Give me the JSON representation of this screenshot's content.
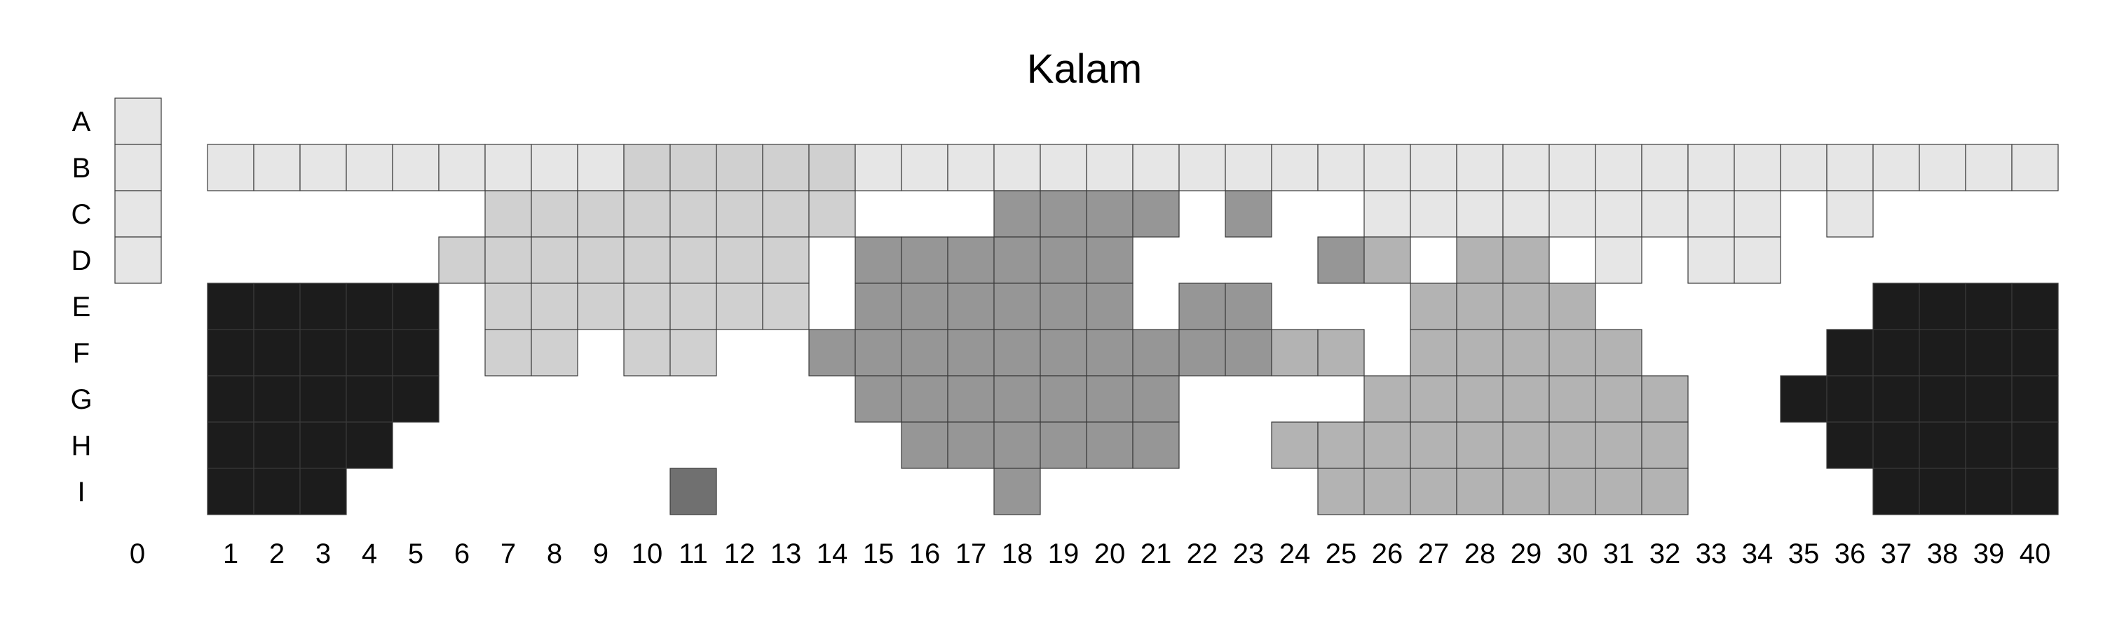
{
  "chart_data": {
    "type": "heatmap",
    "title": "Kalam",
    "rows": [
      "A",
      "B",
      "C",
      "D",
      "E",
      "F",
      "G",
      "H",
      "I"
    ],
    "columns": [
      "0",
      "1",
      "2",
      "3",
      "4",
      "5",
      "6",
      "7",
      "8",
      "9",
      "10",
      "11",
      "12",
      "13",
      "14",
      "15",
      "16",
      "17",
      "18",
      "19",
      "20",
      "21",
      "22",
      "23",
      "24",
      "25",
      "26",
      "27",
      "28",
      "29",
      "30",
      "31",
      "32",
      "33",
      "34",
      "35",
      "36",
      "37",
      "38",
      "39",
      "40"
    ],
    "levels": {
      "1": "#e6e6e6",
      "2": "#d0d0d0",
      "3": "#b3b3b3",
      "4": "#969696",
      "5": "#707070",
      "6": "#1c1c1c"
    },
    "grid": [
      [
        1,
        0,
        0,
        0,
        0,
        0,
        0,
        0,
        0,
        0,
        0,
        0,
        0,
        0,
        0,
        0,
        0,
        0,
        0,
        0,
        0,
        0,
        0,
        0,
        0,
        0,
        0,
        0,
        0,
        0,
        0,
        0,
        0,
        0,
        0,
        0,
        0,
        0,
        0,
        0,
        0
      ],
      [
        1,
        1,
        1,
        1,
        1,
        1,
        1,
        1,
        1,
        1,
        2,
        2,
        2,
        2,
        2,
        1,
        1,
        1,
        1,
        1,
        1,
        1,
        1,
        1,
        1,
        1,
        1,
        1,
        1,
        1,
        1,
        1,
        1,
        1,
        1,
        1,
        1,
        1,
        1,
        1,
        1
      ],
      [
        1,
        0,
        0,
        0,
        0,
        0,
        0,
        2,
        2,
        2,
        2,
        2,
        2,
        2,
        2,
        0,
        0,
        0,
        4,
        4,
        4,
        4,
        0,
        4,
        0,
        0,
        1,
        1,
        1,
        1,
        1,
        1,
        1,
        1,
        1,
        0,
        1,
        0,
        0,
        0,
        0
      ],
      [
        1,
        0,
        0,
        0,
        0,
        0,
        2,
        2,
        2,
        2,
        2,
        2,
        2,
        2,
        0,
        4,
        4,
        4,
        4,
        4,
        4,
        0,
        0,
        0,
        0,
        4,
        3,
        0,
        3,
        3,
        0,
        1,
        0,
        1,
        1,
        0,
        0,
        0,
        0,
        0,
        0
      ],
      [
        0,
        6,
        6,
        6,
        6,
        6,
        0,
        2,
        2,
        2,
        2,
        2,
        2,
        2,
        0,
        4,
        4,
        4,
        4,
        4,
        4,
        0,
        4,
        4,
        0,
        0,
        0,
        3,
        3,
        3,
        3,
        0,
        0,
        0,
        0,
        0,
        0,
        6,
        6,
        6,
        6
      ],
      [
        0,
        6,
        6,
        6,
        6,
        6,
        0,
        2,
        2,
        0,
        2,
        2,
        0,
        0,
        4,
        4,
        4,
        4,
        4,
        4,
        4,
        4,
        4,
        4,
        3,
        3,
        0,
        3,
        3,
        3,
        3,
        3,
        0,
        0,
        0,
        0,
        6,
        6,
        6,
        6,
        6
      ],
      [
        0,
        6,
        6,
        6,
        6,
        6,
        0,
        0,
        0,
        0,
        0,
        0,
        0,
        0,
        0,
        4,
        4,
        4,
        4,
        4,
        4,
        4,
        0,
        0,
        0,
        0,
        3,
        3,
        3,
        3,
        3,
        3,
        3,
        0,
        0,
        6,
        6,
        6,
        6,
        6,
        6
      ],
      [
        0,
        6,
        6,
        6,
        6,
        0,
        0,
        0,
        0,
        0,
        0,
        0,
        0,
        0,
        0,
        0,
        4,
        4,
        4,
        4,
        4,
        4,
        0,
        0,
        3,
        3,
        3,
        3,
        3,
        3,
        3,
        3,
        3,
        0,
        0,
        0,
        6,
        6,
        6,
        6,
        6
      ],
      [
        0,
        6,
        6,
        6,
        0,
        0,
        0,
        0,
        0,
        0,
        0,
        5,
        0,
        0,
        0,
        0,
        0,
        0,
        4,
        0,
        0,
        0,
        0,
        0,
        0,
        3,
        3,
        3,
        3,
        3,
        3,
        3,
        3,
        0,
        0,
        0,
        0,
        6,
        6,
        6,
        6
      ]
    ]
  }
}
